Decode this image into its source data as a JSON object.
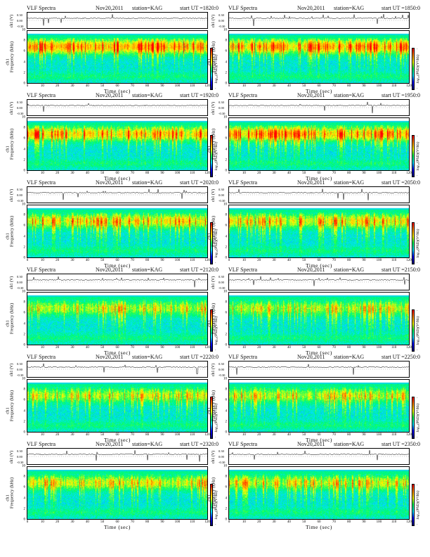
{
  "colors": {
    "colormap": [
      "#00006a",
      "#0000ff",
      "#00e0ff",
      "#00ff60",
      "#ffff00",
      "#ff8800",
      "#ff0000"
    ],
    "saturation_band": "#00d8e0",
    "waveform": "#000000"
  },
  "chart_data": [
    {
      "type": "heatmap",
      "title": "VLF Spectra",
      "date": "Nov20,2011",
      "station": "station=KAG",
      "start_ut": "start UT =1820:0",
      "xlabel": "Time (sec)",
      "ylabel": "Frequency (kHz)",
      "waveform_label": "ch1 (V)",
      "channel_label": "ch1",
      "colorbar_label": "log₁₀(PSD)(V²/Hz)",
      "xlim": [
        0,
        120
      ],
      "ylim": [
        0,
        10
      ],
      "x_ticks": [
        "0",
        "10",
        "20",
        "30",
        "40",
        "50",
        "60",
        "70",
        "80",
        "90",
        "100",
        "110",
        "120"
      ],
      "y_ticks": [
        "0",
        "2",
        "4",
        "6",
        "8",
        "10"
      ],
      "waveform_ticks": [
        "0.30",
        "0.00",
        "-0.30"
      ],
      "cbar_ticks": [
        "-",
        "-"
      ],
      "activity": 0.85
    },
    {
      "type": "heatmap",
      "title": "VLF Spectra",
      "date": "Nov20,2011",
      "station": "station=KAG",
      "start_ut": "start UT =1850:0",
      "xlabel": "Time (sec)",
      "ylabel": "Frequency (kHz)",
      "waveform_label": "ch1 (V)",
      "channel_label": "ch1",
      "colorbar_label": "log₁₀(PSD)(V²/Hz)",
      "xlim": [
        0,
        120
      ],
      "ylim": [
        0,
        10
      ],
      "x_ticks": [
        "0",
        "10",
        "20",
        "30",
        "40",
        "50",
        "60",
        "70",
        "80",
        "90",
        "100",
        "110",
        "120"
      ],
      "y_ticks": [
        "0",
        "2",
        "4",
        "6",
        "8",
        "10"
      ],
      "waveform_ticks": [
        "0.30",
        "0.00",
        "-0.30"
      ],
      "cbar_ticks": [
        "-",
        "-"
      ],
      "activity": 0.78
    },
    {
      "type": "heatmap",
      "title": "VLF Spectra",
      "date": "Nov20,2011",
      "station": "station=KAG",
      "start_ut": "start UT =1920:0",
      "xlabel": "Time (sec)",
      "ylabel": "Frequency (kHz)",
      "waveform_label": "ch1 (V)",
      "channel_label": "ch1",
      "colorbar_label": "log₁₀(PSD)(V²/Hz)",
      "xlim": [
        0,
        120
      ],
      "ylim": [
        0,
        10
      ],
      "x_ticks": [
        "0",
        "10",
        "20",
        "30",
        "40",
        "50",
        "60",
        "70",
        "80",
        "90",
        "100",
        "110",
        "120"
      ],
      "y_ticks": [
        "0",
        "2",
        "4",
        "6",
        "8",
        "10"
      ],
      "waveform_ticks": [
        "0.30",
        "0.00",
        "-0.30"
      ],
      "cbar_ticks": [
        "-",
        "-"
      ],
      "activity": 0.72
    },
    {
      "type": "heatmap",
      "title": "VLF Spectra",
      "date": "Nov20,2011",
      "station": "station=KAG",
      "start_ut": "start UT =1950:0",
      "xlabel": "Time (sec)",
      "ylabel": "Frequency (kHz)",
      "waveform_label": "ch1 (V)",
      "channel_label": "ch1",
      "colorbar_label": "log₁₀(PSD)(V²/Hz)",
      "xlim": [
        0,
        120
      ],
      "ylim": [
        0,
        10
      ],
      "x_ticks": [
        "0",
        "10",
        "20",
        "30",
        "40",
        "50",
        "60",
        "70",
        "80",
        "90",
        "100",
        "110",
        "120"
      ],
      "y_ticks": [
        "0",
        "2",
        "4",
        "6",
        "8",
        "10"
      ],
      "waveform_ticks": [
        "0.30",
        "0.00",
        "-0.30"
      ],
      "cbar_ticks": [
        "-",
        "-"
      ],
      "activity": 0.75
    },
    {
      "type": "heatmap",
      "title": "VLF Spectra",
      "date": "Nov20,2011",
      "station": "station=KAG",
      "start_ut": "start UT =2020:0",
      "xlabel": "Time (sec)",
      "ylabel": "Frequency (kHz)",
      "waveform_label": "ch1 (V)",
      "channel_label": "ch1",
      "colorbar_label": "log₁₀(PSD)(V²/Hz)",
      "xlim": [
        0,
        120
      ],
      "ylim": [
        0,
        10
      ],
      "x_ticks": [
        "0",
        "10",
        "20",
        "30",
        "40",
        "50",
        "60",
        "70",
        "80",
        "90",
        "100",
        "110",
        "120"
      ],
      "y_ticks": [
        "0",
        "2",
        "4",
        "6",
        "8",
        "10"
      ],
      "waveform_ticks": [
        "0.30",
        "0.00",
        "-0.30"
      ],
      "cbar_ticks": [
        "-",
        "-"
      ],
      "activity": 0.6
    },
    {
      "type": "heatmap",
      "title": "VLF Spectra",
      "date": "Nov20,2011",
      "station": "station=KAG",
      "start_ut": "start UT =2050:0",
      "xlabel": "Time (sec)",
      "ylabel": "Frequency (kHz)",
      "waveform_label": "ch1 (V)",
      "channel_label": "ch1",
      "colorbar_label": "log₁₀(PSD)(V²/Hz)",
      "xlim": [
        0,
        120
      ],
      "ylim": [
        0,
        10
      ],
      "x_ticks": [
        "0",
        "10",
        "20",
        "30",
        "40",
        "50",
        "60",
        "70",
        "80",
        "90",
        "100",
        "110",
        "120"
      ],
      "y_ticks": [
        "0",
        "2",
        "4",
        "6",
        "8",
        "10"
      ],
      "waveform_ticks": [
        "0.30",
        "0.00",
        "-0.30"
      ],
      "cbar_ticks": [
        "-",
        "-"
      ],
      "activity": 0.58
    },
    {
      "type": "heatmap",
      "title": "VLF Spectra",
      "date": "Nov20,2011",
      "station": "station=KAG",
      "start_ut": "start UT =2120:0",
      "xlabel": "Time (sec)",
      "ylabel": "Frequency (kHz)",
      "waveform_label": "ch1 (V)",
      "channel_label": "ch1",
      "colorbar_label": "log₁₀(PSD)(V²/Hz)",
      "xlim": [
        0,
        120
      ],
      "ylim": [
        0,
        10
      ],
      "x_ticks": [
        "0",
        "10",
        "20",
        "30",
        "40",
        "50",
        "60",
        "70",
        "80",
        "90",
        "100",
        "110",
        "120"
      ],
      "y_ticks": [
        "0",
        "2",
        "4",
        "6",
        "8",
        "10"
      ],
      "waveform_ticks": [
        "0.30",
        "0.00",
        "-0.30"
      ],
      "cbar_ticks": [
        "-",
        "-"
      ],
      "activity": 0.5
    },
    {
      "type": "heatmap",
      "title": "VLF Spectra",
      "date": "Nov20,2011",
      "station": "station=KAG",
      "start_ut": "start UT =2150:0",
      "xlabel": "Time (sec)",
      "ylabel": "Frequency (kHz)",
      "waveform_label": "ch1 (V)",
      "channel_label": "ch1",
      "colorbar_label": "log₁₀(PSD)(V²/Hz)",
      "xlim": [
        0,
        120
      ],
      "ylim": [
        0,
        10
      ],
      "x_ticks": [
        "0",
        "10",
        "20",
        "30",
        "40",
        "50",
        "60",
        "70",
        "80",
        "90",
        "100",
        "110",
        "120"
      ],
      "y_ticks": [
        "0",
        "2",
        "4",
        "6",
        "8",
        "10"
      ],
      "waveform_ticks": [
        "0.30",
        "0.00",
        "-0.30"
      ],
      "cbar_ticks": [
        "-",
        "-"
      ],
      "activity": 0.45
    },
    {
      "type": "heatmap",
      "title": "VLF Spectra",
      "date": "Nov20,2011",
      "station": "station=KAG",
      "start_ut": "start UT =2220:0",
      "xlabel": "Time (sec)",
      "ylabel": "Frequency (kHz)",
      "waveform_label": "ch1 (V)",
      "channel_label": "ch1",
      "colorbar_label": "log₁₀(PSD)(V²/Hz)",
      "xlim": [
        0,
        120
      ],
      "ylim": [
        0,
        10
      ],
      "x_ticks": [
        "0",
        "10",
        "20",
        "30",
        "40",
        "50",
        "60",
        "70",
        "80",
        "90",
        "100",
        "110",
        "120"
      ],
      "y_ticks": [
        "0",
        "2",
        "4",
        "6",
        "8",
        "10"
      ],
      "waveform_ticks": [
        "0.30",
        "0.00",
        "-0.30"
      ],
      "cbar_ticks": [
        "-",
        "-"
      ],
      "activity": 0.5
    },
    {
      "type": "heatmap",
      "title": "VLF Spectra",
      "date": "Nov20,2011",
      "station": "station=KAG",
      "start_ut": "start UT =2250:0",
      "xlabel": "Time (sec)",
      "ylabel": "Frequency (kHz)",
      "waveform_label": "ch1 (V)",
      "channel_label": "ch1",
      "colorbar_label": "log₁₀(PSD)(V²/Hz)",
      "xlim": [
        0,
        120
      ],
      "ylim": [
        0,
        10
      ],
      "x_ticks": [
        "0",
        "10",
        "20",
        "30",
        "40",
        "50",
        "60",
        "70",
        "80",
        "90",
        "100",
        "110",
        "120"
      ],
      "y_ticks": [
        "0",
        "2",
        "4",
        "6",
        "8",
        "10"
      ],
      "waveform_ticks": [
        "0.30",
        "0.00",
        "-0.30"
      ],
      "cbar_ticks": [
        "-",
        "-"
      ],
      "activity": 0.48
    },
    {
      "type": "heatmap",
      "title": "VLF Spectra",
      "date": "Nov20,2011",
      "station": "station=KAG",
      "start_ut": "start UT =2320:0",
      "xlabel": "Time (sec)",
      "ylabel": "Frequency (kHz)",
      "waveform_label": "ch1 (V)",
      "channel_label": "ch1",
      "colorbar_label": "log₁₀(PSD)(V²/Hz)",
      "xlim": [
        0,
        120
      ],
      "ylim": [
        0,
        10
      ],
      "x_ticks": [
        "0",
        "10",
        "20",
        "30",
        "40",
        "50",
        "60",
        "70",
        "80",
        "90",
        "100",
        "110",
        "120"
      ],
      "y_ticks": [
        "0",
        "2",
        "4",
        "6",
        "8",
        "10"
      ],
      "waveform_ticks": [
        "0.30",
        "0.00",
        "-0.30"
      ],
      "cbar_ticks": [
        "-",
        "-"
      ],
      "activity": 0.52
    },
    {
      "type": "heatmap",
      "title": "VLF Spectra",
      "date": "Nov20,2011",
      "station": "station=KAG",
      "start_ut": "start UT =2350:0",
      "xlabel": "Time (sec)",
      "ylabel": "Frequency (kHz)",
      "waveform_label": "ch1 (V)",
      "channel_label": "ch1",
      "colorbar_label": "log₁₀(PSD)(V²/Hz)",
      "xlim": [
        0,
        120
      ],
      "ylim": [
        0,
        10
      ],
      "x_ticks": [
        "0",
        "10",
        "20",
        "30",
        "40",
        "50",
        "60",
        "70",
        "80",
        "90",
        "100",
        "110",
        "120"
      ],
      "y_ticks": [
        "0",
        "2",
        "4",
        "6",
        "8",
        "10"
      ],
      "waveform_ticks": [
        "0.30",
        "0.00",
        "-0.30"
      ],
      "cbar_ticks": [
        "-",
        "-"
      ],
      "activity": 0.5
    }
  ]
}
